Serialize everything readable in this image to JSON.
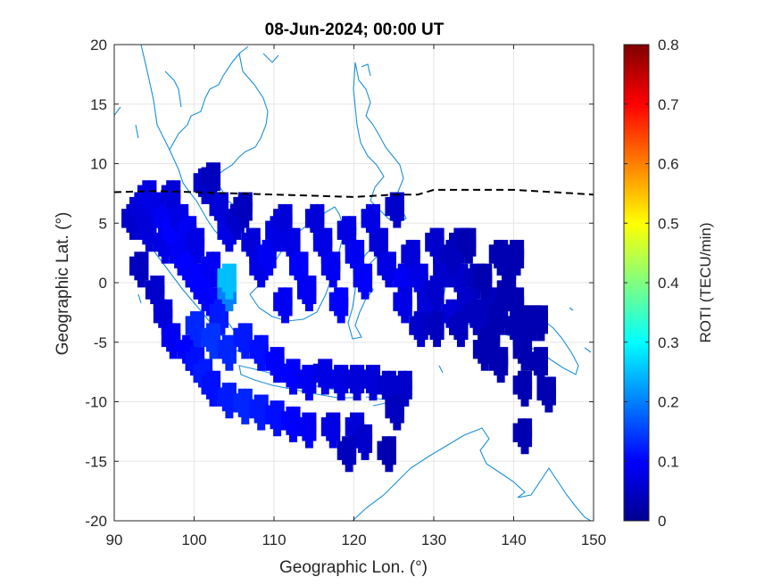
{
  "chart_data": {
    "type": "heatmap",
    "title": "08-Jun-2024; 00:00 UT",
    "xlabel": "Geographic Lon. (°)",
    "ylabel": "Geographic Lat. (°)",
    "colorbar_label": "ROTI (TECU/min)",
    "xlim": [
      90,
      150
    ],
    "ylim": [
      -20,
      20
    ],
    "clim": [
      0,
      0.8
    ],
    "x_ticks": [
      "90",
      "100",
      "110",
      "120",
      "130",
      "140",
      "150"
    ],
    "y_ticks": [
      "20",
      "15",
      "10",
      "5",
      "0",
      "-5",
      "-10",
      "-15",
      "-20"
    ],
    "colorbar_ticks": [
      "0.8",
      "0.7",
      "0.6",
      "0.5",
      "0.4",
      "0.3",
      "0.2",
      "0.1",
      "0"
    ],
    "colormap": "jet",
    "grid": true,
    "magnetic_equator_style": "black dashed line",
    "magnetic_equator": [
      [
        90,
        7.6
      ],
      [
        95,
        7.7
      ],
      [
        100,
        7.6
      ],
      [
        105,
        7.5
      ],
      [
        110,
        7.4
      ],
      [
        115,
        7.3
      ],
      [
        120,
        7.2
      ],
      [
        125,
        7.4
      ],
      [
        128,
        7.4
      ],
      [
        130,
        7.8
      ],
      [
        135,
        7.8
      ],
      [
        140,
        7.8
      ],
      [
        145,
        7.6
      ],
      [
        150,
        7.4
      ]
    ],
    "roti_patches": [
      [
        92,
        5,
        0.06
      ],
      [
        93,
        6,
        0.07
      ],
      [
        94,
        7,
        0.08
      ],
      [
        94,
        4,
        0.07
      ],
      [
        95,
        6,
        0.08
      ],
      [
        96,
        5,
        0.09
      ],
      [
        96,
        3,
        0.08
      ],
      [
        97,
        4,
        0.1
      ],
      [
        97,
        7,
        0.07
      ],
      [
        98,
        2,
        0.09
      ],
      [
        98,
        5,
        0.08
      ],
      [
        99,
        1,
        0.1
      ],
      [
        99,
        4,
        0.09
      ],
      [
        100,
        0,
        0.1
      ],
      [
        100,
        3,
        0.08
      ],
      [
        101,
        -1,
        0.1
      ],
      [
        101,
        8,
        0.06
      ],
      [
        102,
        -2,
        0.1
      ],
      [
        102,
        1,
        0.09
      ],
      [
        102,
        8.5,
        0.05
      ],
      [
        103,
        -3,
        0.12
      ],
      [
        103,
        6,
        0.07
      ],
      [
        104,
        -1,
        0.2
      ],
      [
        104,
        0,
        0.25
      ],
      [
        104,
        4,
        0.08
      ],
      [
        105,
        5,
        0.06
      ],
      [
        106,
        6,
        0.05
      ],
      [
        107,
        3,
        0.07
      ],
      [
        108,
        1,
        0.08
      ],
      [
        109,
        2,
        0.09
      ],
      [
        110,
        4,
        0.08
      ],
      [
        111,
        5,
        0.07
      ],
      [
        111,
        -2,
        0.09
      ],
      [
        112,
        3,
        0.08
      ],
      [
        113,
        1,
        0.1
      ],
      [
        114,
        -1,
        0.09
      ],
      [
        115,
        5,
        0.07
      ],
      [
        116,
        3,
        0.08
      ],
      [
        117,
        1,
        0.09
      ],
      [
        118,
        -2,
        0.1
      ],
      [
        119,
        4,
        0.08
      ],
      [
        120,
        2,
        0.09
      ],
      [
        121,
        0,
        0.1
      ],
      [
        122,
        5,
        0.08
      ],
      [
        123,
        3,
        0.07
      ],
      [
        124,
        1,
        0.08
      ],
      [
        125,
        6,
        0.06
      ],
      [
        126,
        0,
        0.09
      ],
      [
        126,
        -2,
        0.08
      ],
      [
        93,
        1,
        0.05
      ],
      [
        95,
        -1,
        0.06
      ],
      [
        96,
        -3,
        0.07
      ],
      [
        97,
        -5,
        0.09
      ],
      [
        99,
        -6,
        0.1
      ],
      [
        100,
        -7,
        0.11
      ],
      [
        101,
        -8,
        0.12
      ],
      [
        102,
        -9,
        0.11
      ],
      [
        104,
        -10,
        0.12
      ],
      [
        106,
        -10.5,
        0.13
      ],
      [
        108,
        -11,
        0.12
      ],
      [
        110,
        -11.5,
        0.11
      ],
      [
        112,
        -12,
        0.1
      ],
      [
        114,
        -12.5,
        0.09
      ],
      [
        117,
        -12.5,
        0.08
      ],
      [
        120,
        -12.5,
        0.07
      ],
      [
        121,
        -13.5,
        0.06
      ],
      [
        100,
        -4,
        0.13
      ],
      [
        102,
        -5,
        0.14
      ],
      [
        104,
        -6,
        0.13
      ],
      [
        106,
        -5,
        0.12
      ],
      [
        108,
        -6,
        0.11
      ],
      [
        110,
        -7,
        0.1
      ],
      [
        112,
        -8,
        0.1
      ],
      [
        114,
        -8.5,
        0.09
      ],
      [
        116,
        -8,
        0.08
      ],
      [
        118,
        -8.5,
        0.08
      ],
      [
        120,
        -8.5,
        0.07
      ],
      [
        122,
        -8.5,
        0.07
      ],
      [
        124,
        -9,
        0.06
      ],
      [
        126,
        -9,
        0.06
      ],
      [
        125,
        -11,
        0.05
      ],
      [
        124,
        -14.5,
        0.04
      ],
      [
        119,
        -14.5,
        0.05
      ],
      [
        127,
        2,
        0.07
      ],
      [
        128,
        0,
        0.08
      ],
      [
        129,
        -2,
        0.07
      ],
      [
        130,
        -1,
        0.06
      ],
      [
        131,
        1,
        0.06
      ],
      [
        132,
        -3,
        0.07
      ],
      [
        133,
        0,
        0.06
      ],
      [
        134,
        -2,
        0.06
      ],
      [
        135,
        -3,
        0.05
      ],
      [
        136,
        -4,
        0.05
      ],
      [
        128,
        -4,
        0.06
      ],
      [
        130,
        -4,
        0.05
      ],
      [
        133,
        -4,
        0.05
      ],
      [
        137,
        -2,
        0.05
      ],
      [
        138,
        -3,
        0.04
      ],
      [
        130,
        3,
        0.06
      ],
      [
        132,
        2,
        0.05
      ],
      [
        133,
        3,
        0.05
      ],
      [
        134,
        3,
        0.04
      ],
      [
        135,
        0,
        0.05
      ],
      [
        136,
        0,
        0.04
      ],
      [
        139,
        -1,
        0.04
      ],
      [
        140,
        -2,
        0.04
      ],
      [
        140,
        -4,
        0.04
      ],
      [
        141,
        -3.5,
        0.04
      ],
      [
        142,
        -3.5,
        0.04
      ],
      [
        143,
        -3.5,
        0.04
      ],
      [
        138,
        2,
        0.04
      ],
      [
        139,
        1,
        0.04
      ],
      [
        140,
        2,
        0.04
      ],
      [
        137,
        -5,
        0.04
      ],
      [
        138,
        -7,
        0.04
      ],
      [
        136,
        -6,
        0.04
      ],
      [
        141,
        -6,
        0.04
      ],
      [
        143,
        -7,
        0.04
      ],
      [
        141,
        -9,
        0.04
      ],
      [
        144,
        -9.5,
        0.04
      ],
      [
        141,
        -13,
        0.04
      ]
    ]
  }
}
